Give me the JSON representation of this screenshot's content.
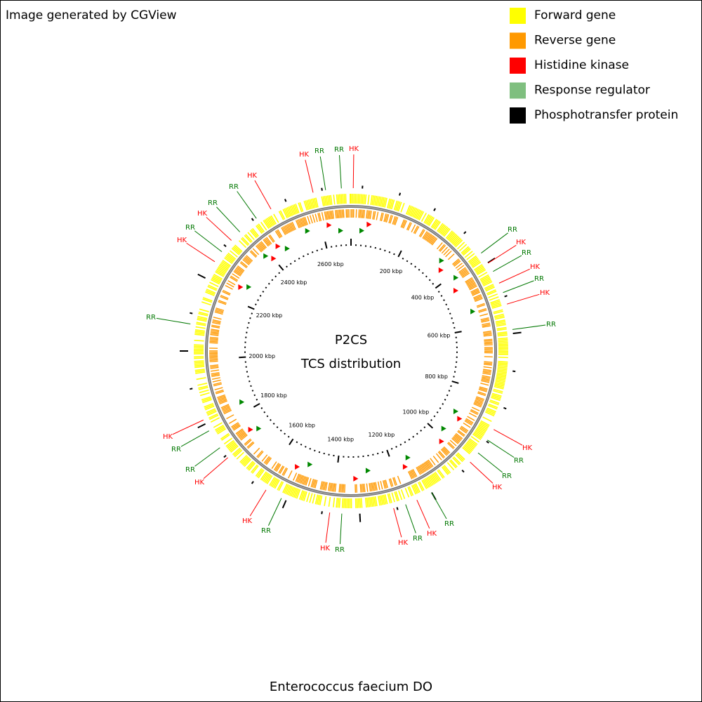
{
  "credit": "Image generated by CGView",
  "legend": [
    {
      "label": "Forward gene",
      "color": "#ffff00"
    },
    {
      "label": "Reverse gene",
      "color": "#ff9900"
    },
    {
      "label": "Histidine kinase",
      "color": "#ff0000"
    },
    {
      "label": "Response regulator",
      "color": "#7fbf7f"
    },
    {
      "label": "Phosphotransfer protein",
      "color": "#000000"
    }
  ],
  "title": "P2CS",
  "subtitle": "TCS distribution",
  "organism": "Enterococcus faecium DO",
  "ticks": [
    "200 kbp",
    "400 kbp",
    "600 kbp",
    "800 kbp",
    "1000 kbp",
    "1200 kbp",
    "1400 kbp",
    "1600 kbp",
    "1800 kbp",
    "2000 kbp",
    "2200 kbp",
    "2400 kbp",
    "2600 kbp"
  ],
  "callouts": [
    {
      "label": "RR",
      "color": "#007700"
    },
    {
      "label": "HK",
      "color": "#ff0000"
    },
    {
      "label": "RR",
      "color": "#007700"
    },
    {
      "label": "HK",
      "color": "#ff0000"
    },
    {
      "label": "RR",
      "color": "#007700"
    },
    {
      "label": "HK",
      "color": "#ff0000"
    },
    {
      "label": "RR",
      "color": "#007700"
    },
    {
      "label": "HK",
      "color": "#ff0000"
    },
    {
      "label": "RR",
      "color": "#007700"
    },
    {
      "label": "HK",
      "color": "#ff0000"
    },
    {
      "label": "RR",
      "color": "#007700"
    },
    {
      "label": "RR",
      "color": "#007700"
    },
    {
      "label": "HK",
      "color": "#ff0000"
    },
    {
      "label": "RR",
      "color": "#007700"
    },
    {
      "label": "HK",
      "color": "#ff0000"
    },
    {
      "label": "RR",
      "color": "#007700"
    },
    {
      "label": "HK",
      "color": "#ff0000"
    },
    {
      "label": "RR",
      "color": "#007700"
    },
    {
      "label": "HK",
      "color": "#ff0000"
    },
    {
      "label": "RR",
      "color": "#007700"
    },
    {
      "label": "HK",
      "color": "#ff0000"
    },
    {
      "label": "HK",
      "color": "#ff0000"
    },
    {
      "label": "RR",
      "color": "#007700"
    },
    {
      "label": "RR",
      "color": "#007700"
    },
    {
      "label": "HK",
      "color": "#ff0000"
    },
    {
      "label": "RR",
      "color": "#007700"
    },
    {
      "label": "HK",
      "color": "#ff0000"
    },
    {
      "label": "RR",
      "color": "#007700"
    },
    {
      "label": "HK",
      "color": "#ff0000"
    },
    {
      "label": "RR",
      "color": "#007700"
    },
    {
      "label": "RR",
      "color": "#007700"
    },
    {
      "label": "HK",
      "color": "#ff0000"
    },
    {
      "label": "HK",
      "color": "#ff0000"
    },
    {
      "label": "RR",
      "color": "#007700"
    }
  ]
}
